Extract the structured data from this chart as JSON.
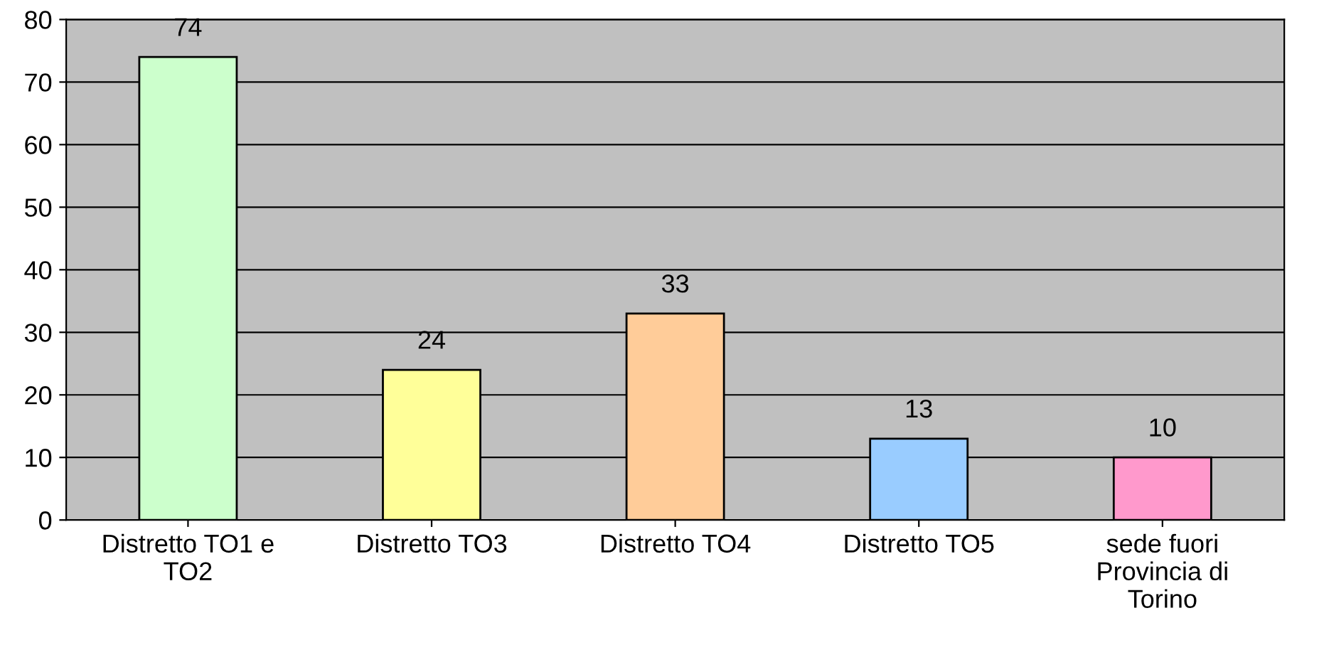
{
  "chart_data": {
    "type": "bar",
    "categories": [
      "Distretto TO1 e TO2",
      "Distretto TO3",
      "Distretto TO4",
      "Distretto TO5",
      "sede fuori Provincia di Torino"
    ],
    "values": [
      74,
      24,
      33,
      13,
      10
    ],
    "colors": [
      "#ccffcc",
      "#ffff99",
      "#ffcc99",
      "#99ccff",
      "#ff99cc"
    ],
    "ylim": [
      0,
      80
    ],
    "yticks": [
      0,
      10,
      20,
      30,
      40,
      50,
      60,
      70,
      80
    ],
    "grid": "y",
    "data_labels": true,
    "legend": false
  }
}
